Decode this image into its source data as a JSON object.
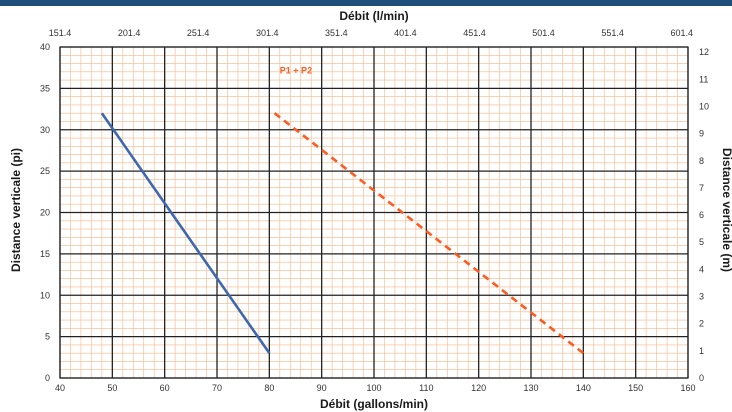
{
  "chart_data": {
    "type": "line",
    "x": {
      "label": "Débit (gallons/min)",
      "lim": [
        40,
        160
      ],
      "ticks": [
        "40",
        "50",
        "60",
        "70",
        "80",
        "90",
        "100",
        "110",
        "120",
        "130",
        "140",
        "150",
        "160"
      ]
    },
    "x2": {
      "label": "Débit (l/min)",
      "tick_positions": [
        40,
        53.2,
        66.4,
        79.6,
        92.8,
        106,
        119.2,
        132.4,
        145.6,
        158.8
      ],
      "ticks": [
        "151.4",
        "201.4",
        "251.4",
        "301.4",
        "351.4",
        "401.4",
        "451.4",
        "501.4",
        "551.4",
        "601.4"
      ]
    },
    "y": {
      "label": "Distance verticale (pi)",
      "lim": [
        0,
        40
      ],
      "ticks": [
        "0",
        "5",
        "10",
        "15",
        "20",
        "25",
        "30",
        "35",
        "40"
      ]
    },
    "y2": {
      "label": "Distance verticale (m)",
      "lim": [
        0,
        12.19
      ],
      "ticks": [
        "0",
        "1",
        "2",
        "3",
        "4",
        "5",
        "6",
        "7",
        "8",
        "9",
        "10",
        "11",
        "12"
      ]
    },
    "grid": true,
    "series": [
      {
        "name": "",
        "color": "#3d68b0",
        "style": "solid",
        "points": [
          [
            48,
            32
          ],
          [
            80,
            3
          ]
        ]
      },
      {
        "name": "P1 + P2",
        "color": "#ff5a1f",
        "style": "dashed",
        "points": [
          [
            81,
            32
          ],
          [
            140,
            3
          ]
        ]
      }
    ],
    "annotations": [
      {
        "text": "P1 + P2",
        "x": 82,
        "y": 36.8,
        "color": "#ff5a1f"
      }
    ]
  },
  "colors": {
    "header_bar": "#1f4e79",
    "minor_grid": "#f5b88a",
    "major_grid": "#222222"
  }
}
